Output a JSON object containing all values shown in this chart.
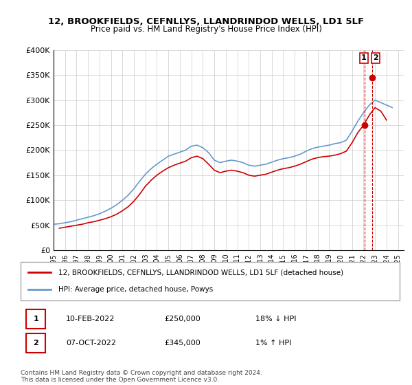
{
  "title": "12, BROOKFIELDS, CEFNLLYS, LLANDRINDOD WELLS, LD1 5LF",
  "subtitle": "Price paid vs. HM Land Registry's House Price Index (HPI)",
  "legend_label_red": "12, BROOKFIELDS, CEFNLLYS, LLANDRINDOD WELLS, LD1 5LF (detached house)",
  "legend_label_blue": "HPI: Average price, detached house, Powys",
  "annotation1_num": "1",
  "annotation1_date": "10-FEB-2022",
  "annotation1_price": "£250,000",
  "annotation1_hpi": "18% ↓ HPI",
  "annotation2_num": "2",
  "annotation2_date": "07-OCT-2022",
  "annotation2_price": "£345,000",
  "annotation2_hpi": "1% ↑ HPI",
  "footer": "Contains HM Land Registry data © Crown copyright and database right 2024.\nThis data is licensed under the Open Government Licence v3.0.",
  "red_color": "#cc0000",
  "blue_color": "#6699cc",
  "annotation_color": "#cc0000",
  "ylim": [
    0,
    400000
  ],
  "yticks": [
    0,
    50000,
    100000,
    150000,
    200000,
    250000,
    300000,
    350000,
    400000
  ],
  "xlim_start": 1995.0,
  "xlim_end": 2025.5,
  "hpi_x": [
    1995.0,
    1995.5,
    1996.0,
    1996.5,
    1997.0,
    1997.5,
    1998.0,
    1998.5,
    1999.0,
    1999.5,
    2000.0,
    2000.5,
    2001.0,
    2001.5,
    2002.0,
    2002.5,
    2003.0,
    2003.5,
    2004.0,
    2004.5,
    2005.0,
    2005.5,
    2006.0,
    2006.5,
    2007.0,
    2007.5,
    2008.0,
    2008.5,
    2009.0,
    2009.5,
    2010.0,
    2010.5,
    2011.0,
    2011.5,
    2012.0,
    2012.5,
    2013.0,
    2013.5,
    2014.0,
    2014.5,
    2015.0,
    2015.5,
    2016.0,
    2016.5,
    2017.0,
    2017.5,
    2018.0,
    2018.5,
    2019.0,
    2019.5,
    2020.0,
    2020.5,
    2021.0,
    2021.5,
    2022.0,
    2022.5,
    2023.0,
    2023.5,
    2024.0,
    2024.5
  ],
  "hpi_y": [
    52000,
    53000,
    55000,
    57000,
    60000,
    63000,
    66000,
    69000,
    73000,
    78000,
    84000,
    91000,
    100000,
    110000,
    123000,
    138000,
    152000,
    163000,
    172000,
    180000,
    188000,
    192000,
    196000,
    200000,
    208000,
    210000,
    205000,
    195000,
    180000,
    175000,
    178000,
    180000,
    178000,
    175000,
    170000,
    168000,
    170000,
    172000,
    176000,
    180000,
    183000,
    185000,
    188000,
    192000,
    198000,
    203000,
    206000,
    208000,
    210000,
    213000,
    215000,
    220000,
    238000,
    258000,
    275000,
    290000,
    300000,
    295000,
    290000,
    285000
  ],
  "red_x": [
    1995.5,
    1996.0,
    1996.5,
    1997.0,
    1997.5,
    1998.0,
    1998.5,
    1999.0,
    1999.5,
    2000.0,
    2000.5,
    2001.0,
    2001.5,
    2002.0,
    2002.5,
    2003.0,
    2003.5,
    2004.0,
    2004.5,
    2005.0,
    2005.5,
    2006.0,
    2006.5,
    2007.0,
    2007.5,
    2008.0,
    2008.5,
    2009.0,
    2009.5,
    2010.0,
    2010.5,
    2011.0,
    2011.5,
    2012.0,
    2012.5,
    2013.0,
    2013.5,
    2014.0,
    2014.5,
    2015.0,
    2015.5,
    2016.0,
    2016.5,
    2017.0,
    2017.5,
    2018.0,
    2018.5,
    2019.0,
    2019.5,
    2020.0,
    2020.5,
    2021.0,
    2021.5,
    2022.0,
    2022.5,
    2023.0,
    2023.5,
    2024.0
  ],
  "red_y": [
    44000,
    46000,
    48000,
    50000,
    52000,
    55000,
    57000,
    60000,
    63000,
    67000,
    72000,
    79000,
    87000,
    98000,
    112000,
    128000,
    140000,
    150000,
    158000,
    165000,
    170000,
    174000,
    178000,
    185000,
    188000,
    183000,
    172000,
    160000,
    155000,
    158000,
    160000,
    158000,
    155000,
    150000,
    148000,
    150000,
    152000,
    156000,
    160000,
    163000,
    165000,
    168000,
    172000,
    177000,
    182000,
    185000,
    187000,
    188000,
    190000,
    193000,
    198000,
    215000,
    235000,
    250000,
    270000,
    285000,
    278000,
    260000
  ],
  "sale1_x": 2022.1,
  "sale1_y": 250000,
  "sale2_x": 2022.75,
  "sale2_y": 345000,
  "xtick_years": [
    "1995",
    "1996",
    "1997",
    "1998",
    "1999",
    "2000",
    "2001",
    "2002",
    "2003",
    "2004",
    "2005",
    "2006",
    "2007",
    "2008",
    "2009",
    "2010",
    "2011",
    "2012",
    "2013",
    "2014",
    "2015",
    "2016",
    "2017",
    "2018",
    "2019",
    "2020",
    "2021",
    "2022",
    "2023",
    "2024",
    "2025"
  ]
}
